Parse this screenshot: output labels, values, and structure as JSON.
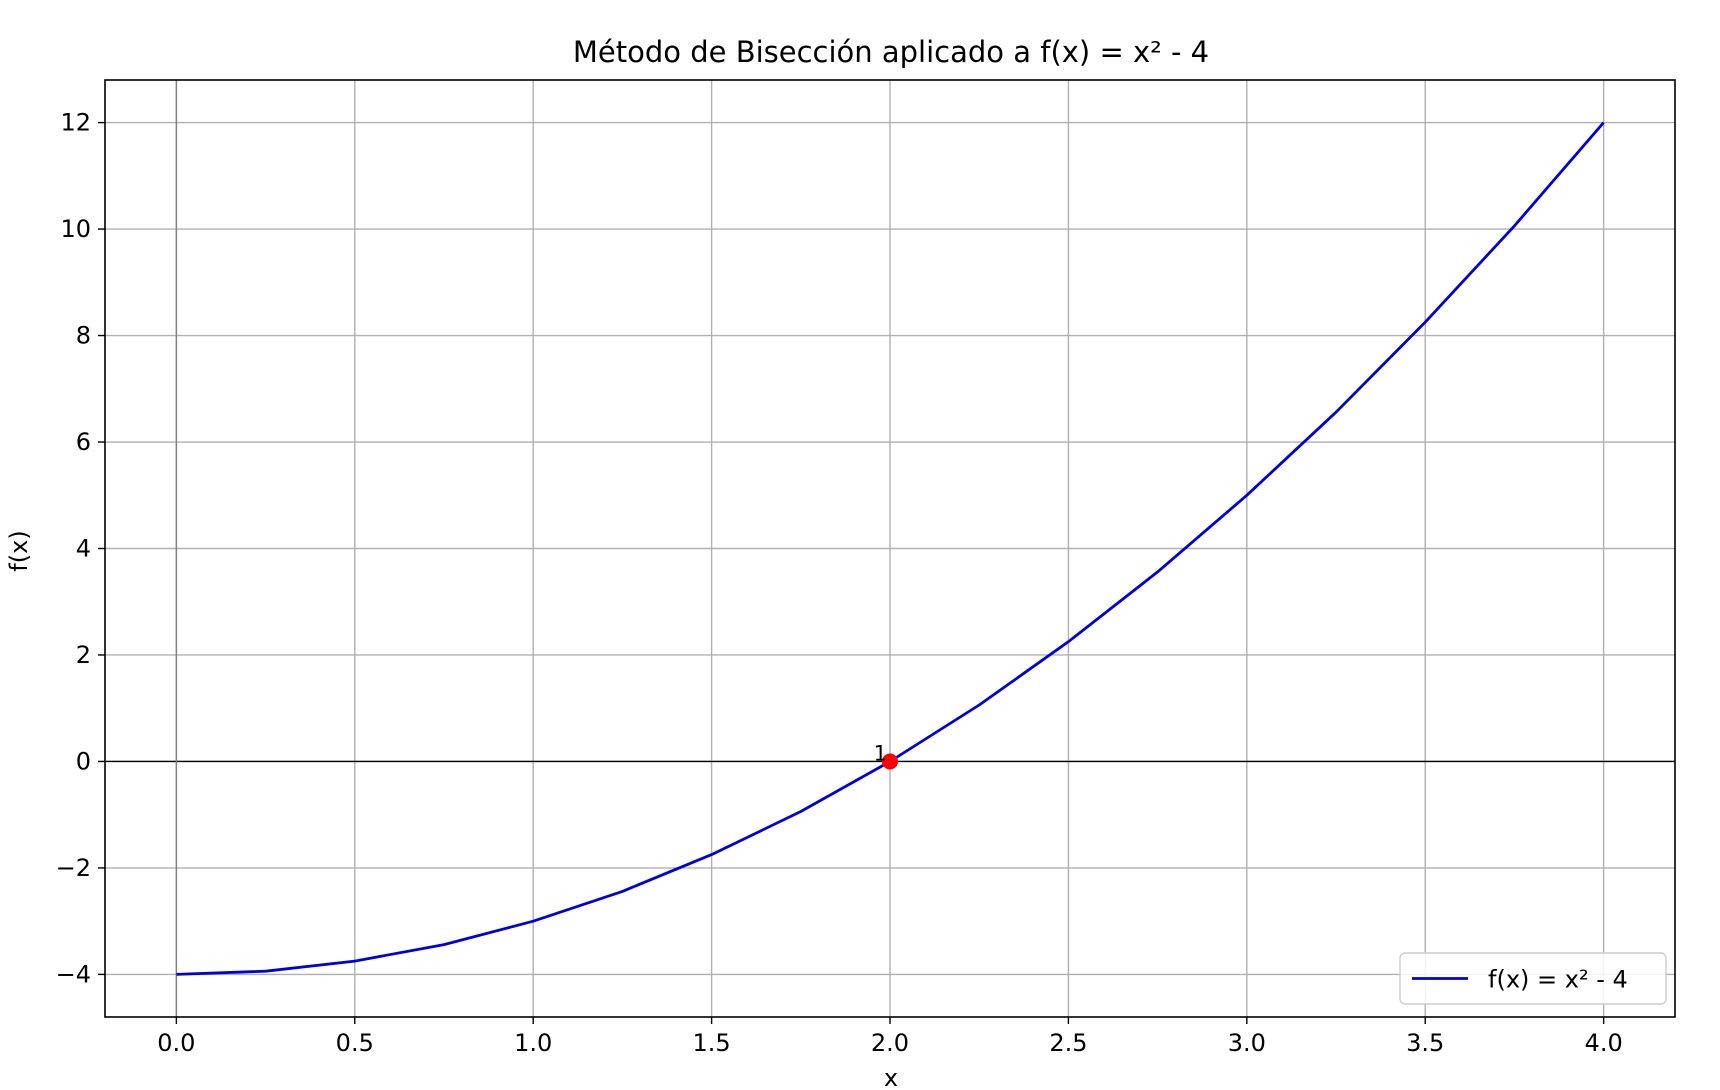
{
  "chart_data": {
    "type": "line",
    "title": "Método de Bisección aplicado a f(x) = x² - 4",
    "xlabel": "x",
    "ylabel": "f(x)",
    "xlim": [
      -0.2,
      4.2
    ],
    "ylim": [
      -4.8,
      12.8
    ],
    "grid": true,
    "legend_position": "bottom-right",
    "x_ticks": [
      0.0,
      0.5,
      1.0,
      1.5,
      2.0,
      2.5,
      3.0,
      3.5,
      4.0
    ],
    "x_tick_labels": [
      "0.0",
      "0.5",
      "1.0",
      "1.5",
      "2.0",
      "2.5",
      "3.0",
      "3.5",
      "4.0"
    ],
    "y_ticks": [
      -4,
      -2,
      0,
      2,
      4,
      6,
      8,
      10,
      12
    ],
    "y_tick_labels": [
      "−4",
      "−2",
      "0",
      "2",
      "4",
      "6",
      "8",
      "10",
      "12"
    ],
    "series": [
      {
        "name": "f(x) = x² - 4",
        "color": "#0000dd",
        "x": [
          0.0,
          0.25,
          0.5,
          0.75,
          1.0,
          1.25,
          1.5,
          1.75,
          2.0,
          2.25,
          2.5,
          2.75,
          3.0,
          3.25,
          3.5,
          3.75,
          4.0
        ],
        "y": [
          -4.0,
          -3.94,
          -3.75,
          -3.44,
          -3.0,
          -2.44,
          -1.75,
          -0.94,
          0.0,
          1.06,
          2.25,
          3.56,
          5.0,
          6.56,
          8.25,
          10.06,
          12.0
        ]
      }
    ],
    "points": [
      {
        "x": 2.0,
        "y": 0.0,
        "label": "1",
        "color": "#ff0000"
      }
    ],
    "reference_lines": [
      {
        "axis": "y",
        "value": 0,
        "color": "#000000"
      },
      {
        "axis": "x",
        "value": 0,
        "color": "#808080"
      }
    ]
  }
}
